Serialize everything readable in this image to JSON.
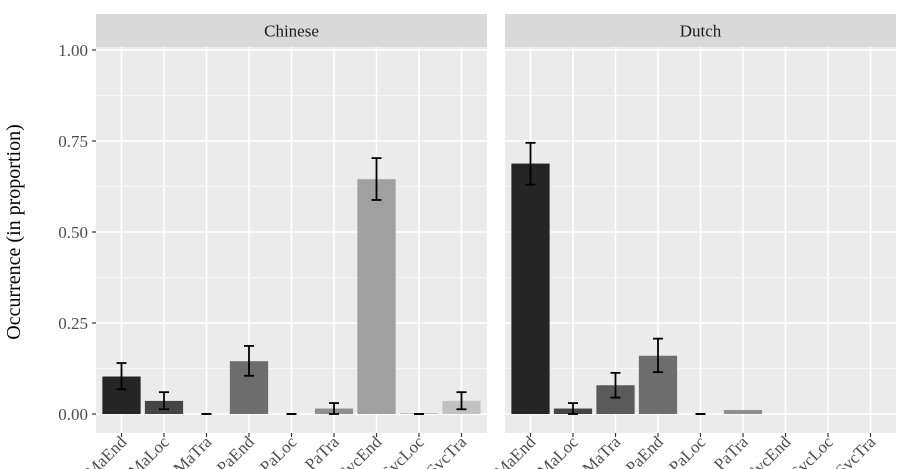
{
  "chart_data": {
    "type": "bar",
    "ylabel": "Occurrence (in proportion)",
    "xlabel": "",
    "ylim": [
      0,
      1.0
    ],
    "yticks": [
      0,
      0.25,
      0.5,
      0.75,
      1.0
    ],
    "ytick_labels": [
      "0.00",
      "0.25",
      "0.50",
      "0.75",
      "1.00"
    ],
    "categories": [
      "MaEnd",
      "MaLoc",
      "MaTra",
      "PaEnd",
      "PaLoc",
      "PaTra",
      "SvcEnd",
      "SvcLoc",
      "SvcTra"
    ],
    "bar_colors": [
      "#252525",
      "#454545",
      "#5a5a5a",
      "#6d6d6d",
      "#7f7f7f",
      "#8f8f8f",
      "#a0a0a0",
      "#b0b0b0",
      "#c2c2c2"
    ],
    "grid": true,
    "panels": [
      {
        "name": "Chinese",
        "values": [
          0.103,
          0.036,
          0.0,
          0.145,
          0.0,
          0.015,
          0.645,
          0.002,
          0.036
        ],
        "error": [
          [
            0.068,
            0.14
          ],
          [
            0.013,
            0.06
          ],
          [
            0.0,
            0.0
          ],
          [
            0.105,
            0.187
          ],
          [
            0.0,
            0.0
          ],
          [
            0.0,
            0.03
          ],
          [
            0.588,
            0.703
          ],
          [
            0.0,
            0.0
          ],
          [
            0.013,
            0.06
          ]
        ]
      },
      {
        "name": "Dutch",
        "values": [
          0.688,
          0.015,
          0.079,
          0.16,
          0.0,
          0.011,
          0.0,
          0.0,
          0.0
        ],
        "error": [
          [
            0.63,
            0.745
          ],
          [
            0.0,
            0.03
          ],
          [
            0.045,
            0.113
          ],
          [
            0.115,
            0.207
          ],
          [
            0.0,
            0.0
          ],
          [
            null,
            null
          ],
          [
            null,
            null
          ],
          [
            null,
            null
          ],
          [
            null,
            null
          ]
        ]
      }
    ]
  }
}
